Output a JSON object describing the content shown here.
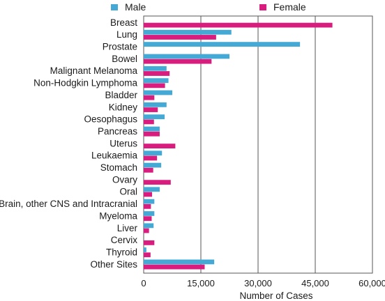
{
  "chart_data": {
    "type": "bar",
    "orientation": "horizontal",
    "categories": [
      "Breast",
      "Lung",
      "Prostate",
      "Bowel",
      "Malignant Melanoma",
      "Non-Hodgkin Lymphoma",
      "Bladder",
      "Kidney",
      "Oesophagus",
      "Pancreas",
      "Uterus",
      "Leukaemia",
      "Stomach",
      "Ovary",
      "Oral",
      "Brain, other CNS and Intracranial",
      "Myeloma",
      "Liver",
      "Cervix",
      "Thyroid",
      "Other Sites"
    ],
    "series": [
      {
        "name": "Male",
        "color": "#45a9d6",
        "values": [
          0,
          23000,
          41000,
          22500,
          6000,
          6500,
          7500,
          6000,
          5500,
          4200,
          0,
          4800,
          4600,
          0,
          4200,
          2800,
          2800,
          2600,
          0,
          700,
          18500
        ]
      },
      {
        "name": "Female",
        "color": "#d91d7f",
        "values": [
          49500,
          19000,
          0,
          17800,
          6800,
          5600,
          2800,
          3700,
          2700,
          4200,
          8300,
          3500,
          2500,
          7100,
          2200,
          1900,
          2100,
          1400,
          2800,
          1800,
          16000
        ]
      }
    ],
    "xlabel": "Number of Cases",
    "ylabel": "",
    "xlim": [
      0,
      60000
    ],
    "xticks": [
      0,
      15000,
      30000,
      45000,
      60000
    ],
    "xtick_labels": [
      "0",
      "15,000",
      "30,000",
      "45,000",
      "60,000"
    ],
    "grid": "vertical",
    "legend_position": "top"
  }
}
